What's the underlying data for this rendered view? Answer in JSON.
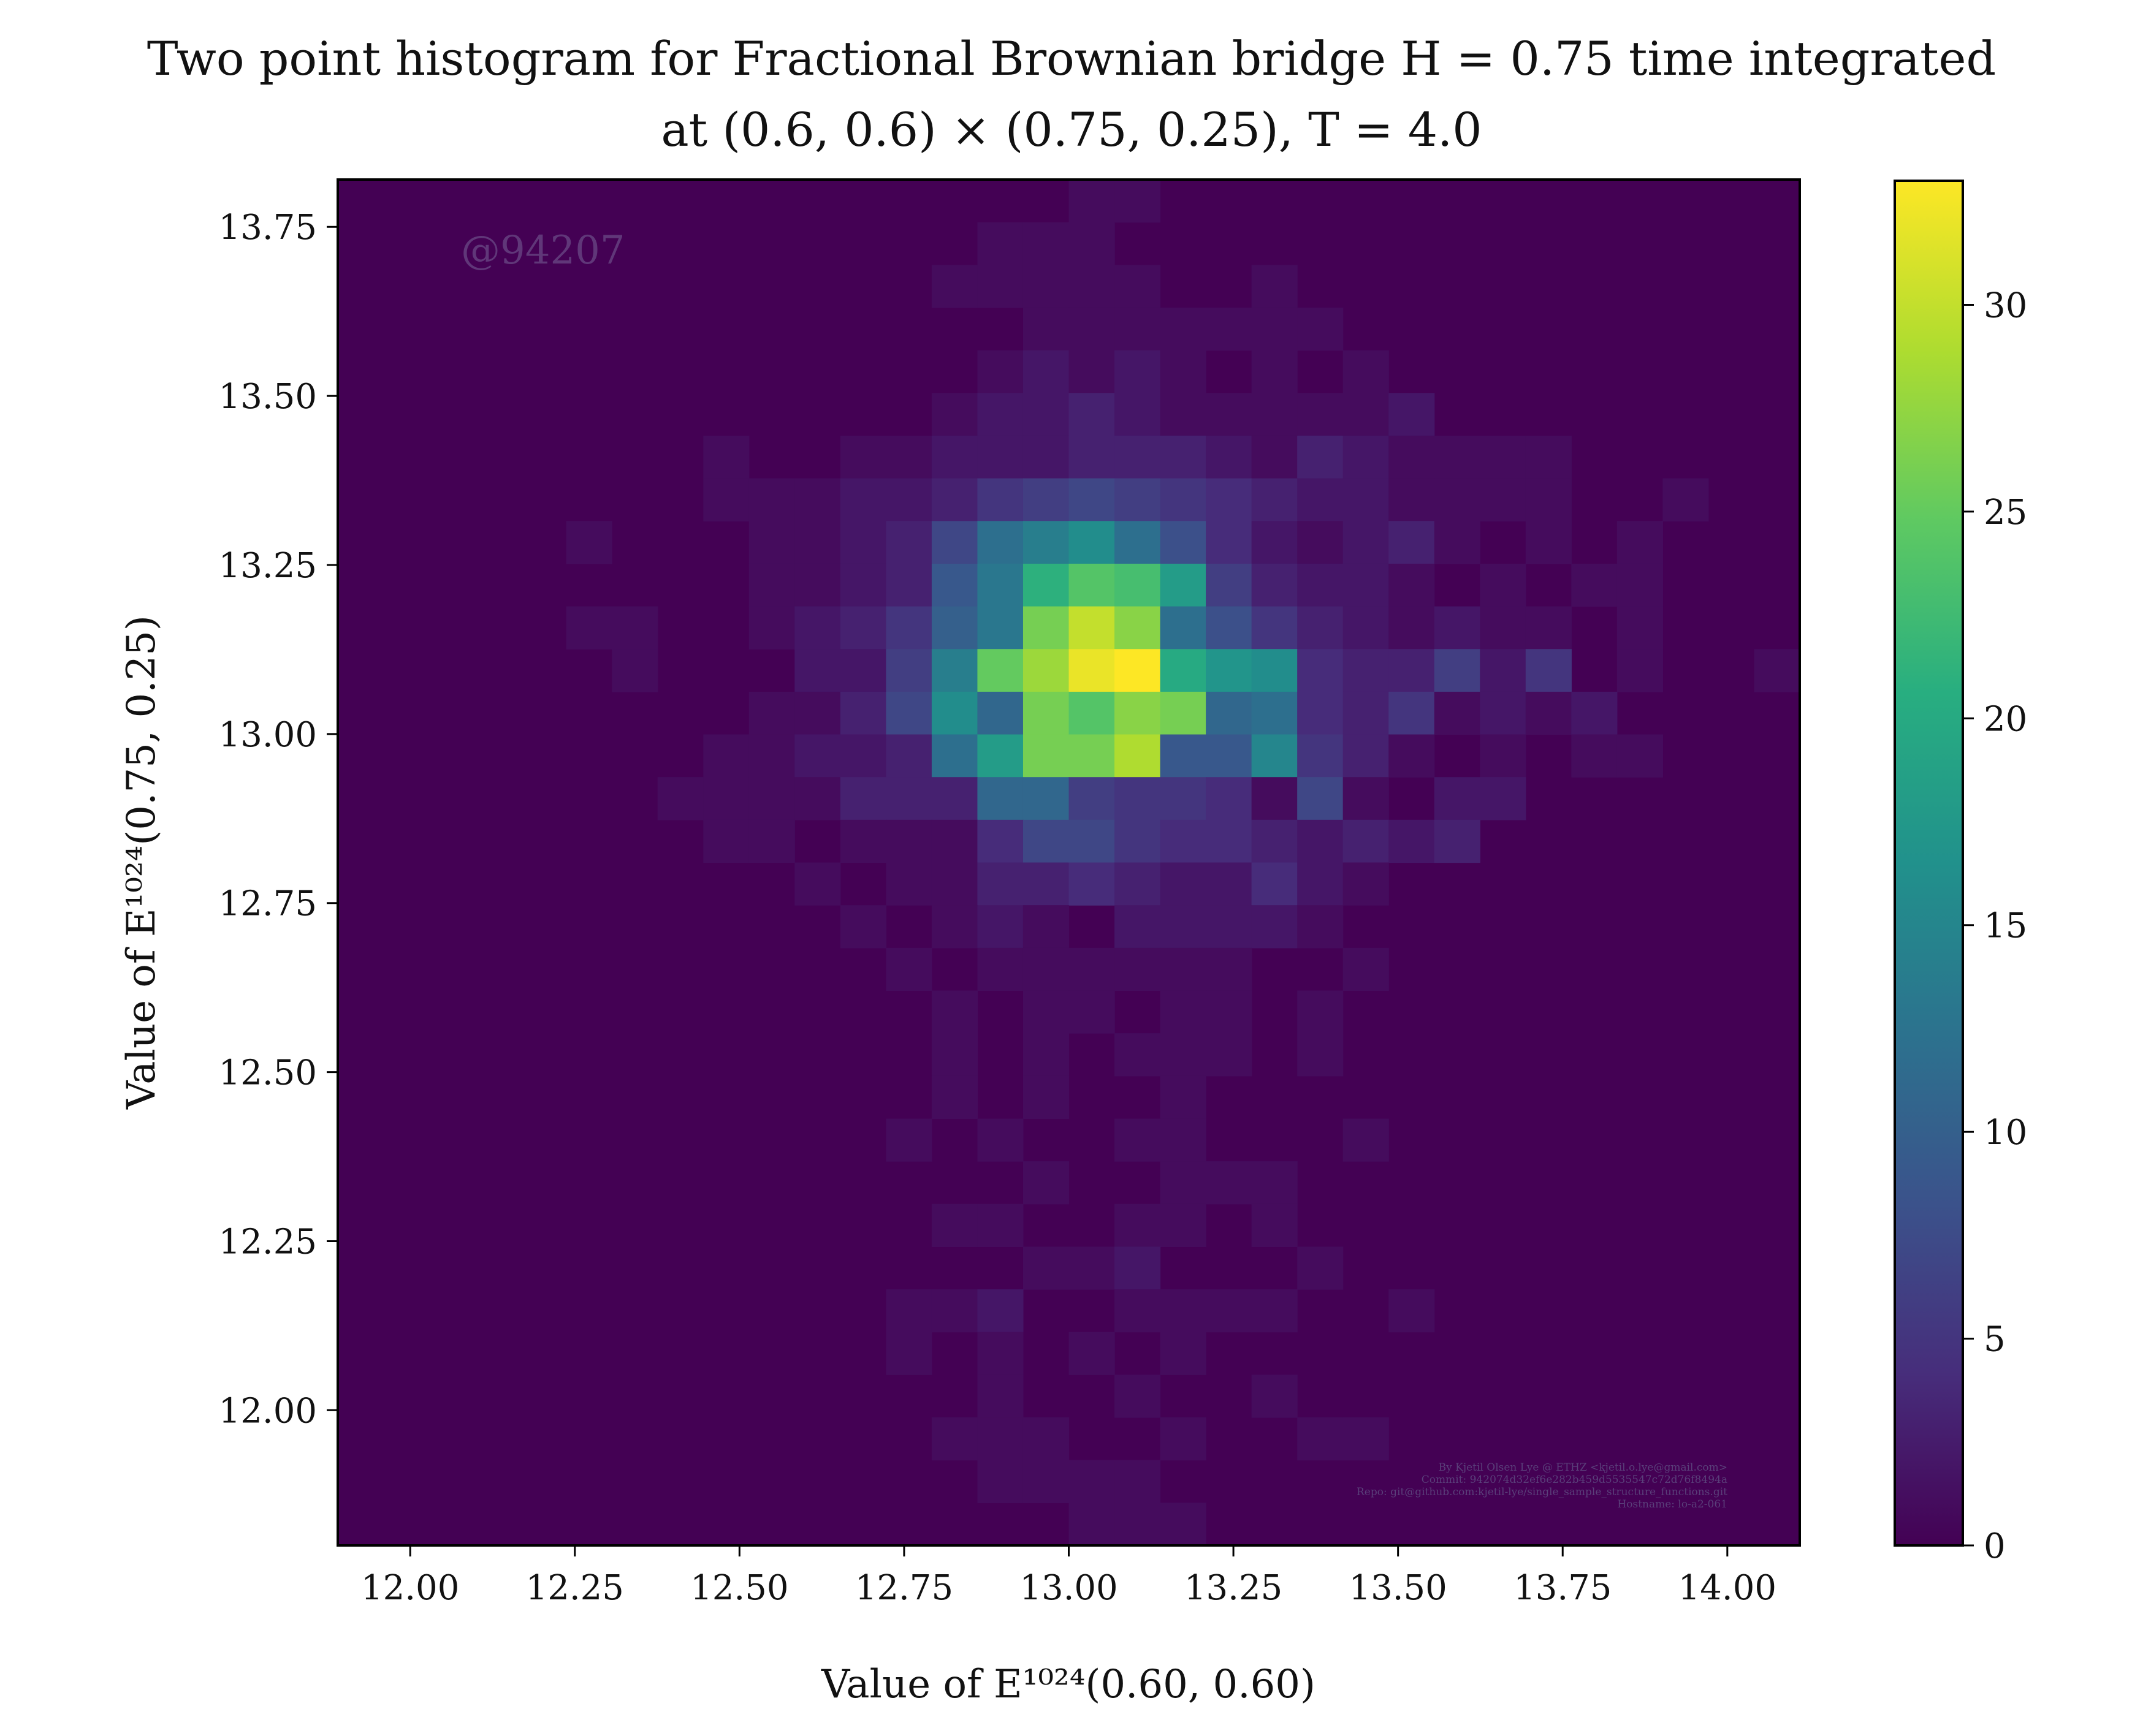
{
  "chart_data": {
    "type": "heatmap",
    "title_line1": "Two point histogram for Fractional Brownian bridge H = 0.75 time integrated",
    "title_line2": "at (0.6, 0.6) × (0.75, 0.25), T = 4.0",
    "xlabel": "Value of E¹⁰²⁴(0.60, 0.60)",
    "ylabel": "Value of E¹⁰²⁴(0.75, 0.25)",
    "xlim": [
      11.89,
      14.11
    ],
    "ylim": [
      11.8,
      13.82
    ],
    "x_ticks": [
      12.0,
      12.25,
      12.5,
      12.75,
      13.0,
      13.25,
      13.5,
      13.75,
      14.0
    ],
    "x_tick_labels": [
      "12.00",
      "12.25",
      "12.50",
      "12.75",
      "13.00",
      "13.25",
      "13.50",
      "13.75",
      "14.00"
    ],
    "y_ticks": [
      12.0,
      12.25,
      12.5,
      12.75,
      13.0,
      13.25,
      13.5,
      13.75
    ],
    "y_tick_labels": [
      "12.00",
      "12.25",
      "12.50",
      "12.75",
      "13.00",
      "13.25",
      "13.50",
      "13.75"
    ],
    "bins_x": 32,
    "bins_y": 32,
    "colorbar": {
      "min": 0,
      "max": 33,
      "ticks": [
        0,
        5,
        10,
        15,
        20,
        25,
        30
      ],
      "tick_labels": [
        "0",
        "5",
        "10",
        "15",
        "20",
        "25",
        "30"
      ],
      "colormap": "viridis"
    },
    "watermark": "@94207",
    "credits": [
      "By Kjetil Olsen Lye @ ETHZ <kjetil.o.lye@gmail.com>",
      "Commit: 942074d32ef6e282b459d5535547c72d76f8494a",
      "Repo: git@github.com:kjetil-lye/single_sample_structure_functions.git",
      "Hostname: lo-a2-061"
    ],
    "counts": [
      [
        31,
        16,
        1
      ],
      [
        31,
        17,
        1
      ],
      [
        30,
        14,
        1
      ],
      [
        30,
        15,
        1
      ],
      [
        30,
        16,
        1
      ],
      [
        29,
        13,
        1
      ],
      [
        29,
        14,
        1
      ],
      [
        29,
        15,
        1
      ],
      [
        29,
        16,
        1
      ],
      [
        29,
        17,
        1
      ],
      [
        29,
        20,
        1
      ],
      [
        28,
        15,
        1
      ],
      [
        28,
        16,
        1
      ],
      [
        28,
        17,
        1
      ],
      [
        28,
        18,
        1
      ],
      [
        28,
        19,
        1
      ],
      [
        28,
        20,
        1
      ],
      [
        28,
        21,
        1
      ],
      [
        27,
        14,
        1
      ],
      [
        27,
        15,
        2
      ],
      [
        27,
        16,
        1
      ],
      [
        27,
        17,
        2
      ],
      [
        27,
        18,
        1
      ],
      [
        27,
        20,
        1
      ],
      [
        27,
        22,
        1
      ],
      [
        26,
        13,
        1
      ],
      [
        26,
        14,
        2
      ],
      [
        26,
        15,
        2
      ],
      [
        26,
        16,
        3
      ],
      [
        26,
        17,
        2
      ],
      [
        26,
        18,
        1
      ],
      [
        26,
        19,
        1
      ],
      [
        26,
        20,
        1
      ],
      [
        26,
        21,
        1
      ],
      [
        26,
        22,
        1
      ],
      [
        26,
        23,
        2
      ],
      [
        25,
        8,
        1
      ],
      [
        25,
        11,
        1
      ],
      [
        25,
        12,
        1
      ],
      [
        25,
        13,
        2
      ],
      [
        25,
        14,
        2
      ],
      [
        25,
        15,
        2
      ],
      [
        25,
        16,
        3
      ],
      [
        25,
        17,
        3
      ],
      [
        25,
        18,
        3
      ],
      [
        25,
        19,
        2
      ],
      [
        25,
        20,
        1
      ],
      [
        25,
        21,
        3
      ],
      [
        25,
        22,
        2
      ],
      [
        25,
        23,
        1
      ],
      [
        25,
        24,
        1
      ],
      [
        25,
        25,
        1
      ],
      [
        25,
        26,
        1
      ],
      [
        24,
        8,
        1
      ],
      [
        24,
        9,
        1
      ],
      [
        24,
        10,
        1
      ],
      [
        24,
        11,
        2
      ],
      [
        24,
        12,
        2
      ],
      [
        24,
        13,
        3
      ],
      [
        24,
        14,
        5
      ],
      [
        24,
        15,
        6
      ],
      [
        24,
        16,
        7
      ],
      [
        24,
        17,
        6
      ],
      [
        24,
        18,
        5
      ],
      [
        24,
        19,
        4
      ],
      [
        24,
        20,
        3
      ],
      [
        24,
        21,
        2
      ],
      [
        24,
        22,
        2
      ],
      [
        24,
        23,
        1
      ],
      [
        24,
        24,
        1
      ],
      [
        24,
        25,
        1
      ],
      [
        24,
        26,
        1
      ],
      [
        24,
        29,
        1
      ],
      [
        23,
        5,
        1
      ],
      [
        23,
        9,
        1
      ],
      [
        23,
        10,
        1
      ],
      [
        23,
        11,
        2
      ],
      [
        23,
        12,
        3
      ],
      [
        23,
        13,
        7
      ],
      [
        23,
        14,
        12
      ],
      [
        23,
        15,
        14
      ],
      [
        23,
        16,
        16
      ],
      [
        23,
        17,
        12
      ],
      [
        23,
        18,
        8
      ],
      [
        23,
        19,
        4
      ],
      [
        23,
        20,
        2
      ],
      [
        23,
        21,
        1
      ],
      [
        23,
        22,
        2
      ],
      [
        23,
        23,
        3
      ],
      [
        23,
        24,
        1
      ],
      [
        23,
        26,
        1
      ],
      [
        23,
        28,
        1
      ],
      [
        22,
        9,
        1
      ],
      [
        22,
        10,
        1
      ],
      [
        22,
        11,
        2
      ],
      [
        22,
        12,
        3
      ],
      [
        22,
        13,
        9
      ],
      [
        22,
        14,
        13
      ],
      [
        22,
        15,
        21
      ],
      [
        22,
        16,
        24
      ],
      [
        22,
        17,
        23
      ],
      [
        22,
        18,
        18
      ],
      [
        22,
        19,
        6
      ],
      [
        22,
        20,
        3
      ],
      [
        22,
        21,
        2
      ],
      [
        22,
        22,
        2
      ],
      [
        22,
        23,
        1
      ],
      [
        22,
        25,
        1
      ],
      [
        22,
        27,
        1
      ],
      [
        22,
        28,
        1
      ],
      [
        21,
        5,
        1
      ],
      [
        21,
        6,
        1
      ],
      [
        21,
        9,
        1
      ],
      [
        21,
        10,
        2
      ],
      [
        21,
        11,
        3
      ],
      [
        21,
        12,
        5
      ],
      [
        21,
        13,
        10
      ],
      [
        21,
        14,
        13
      ],
      [
        21,
        15,
        26
      ],
      [
        21,
        16,
        30
      ],
      [
        21,
        17,
        27
      ],
      [
        21,
        18,
        12
      ],
      [
        21,
        19,
        8
      ],
      [
        21,
        20,
        5
      ],
      [
        21,
        21,
        3
      ],
      [
        21,
        22,
        2
      ],
      [
        21,
        23,
        1
      ],
      [
        21,
        24,
        2
      ],
      [
        21,
        25,
        1
      ],
      [
        21,
        26,
        1
      ],
      [
        21,
        28,
        1
      ],
      [
        20,
        6,
        1
      ],
      [
        20,
        10,
        2
      ],
      [
        20,
        11,
        2
      ],
      [
        20,
        12,
        6
      ],
      [
        20,
        13,
        14
      ],
      [
        20,
        14,
        25
      ],
      [
        20,
        15,
        28
      ],
      [
        20,
        16,
        32
      ],
      [
        20,
        17,
        33
      ],
      [
        20,
        18,
        20
      ],
      [
        20,
        19,
        17
      ],
      [
        20,
        20,
        16
      ],
      [
        20,
        21,
        4
      ],
      [
        20,
        22,
        3
      ],
      [
        20,
        23,
        3
      ],
      [
        20,
        24,
        6
      ],
      [
        20,
        25,
        2
      ],
      [
        20,
        26,
        5
      ],
      [
        20,
        28,
        1
      ],
      [
        20,
        31,
        1
      ],
      [
        19,
        9,
        1
      ],
      [
        19,
        10,
        1
      ],
      [
        19,
        11,
        3
      ],
      [
        19,
        12,
        7
      ],
      [
        19,
        13,
        16
      ],
      [
        19,
        14,
        11
      ],
      [
        19,
        15,
        26
      ],
      [
        19,
        16,
        24
      ],
      [
        19,
        17,
        27
      ],
      [
        19,
        18,
        26
      ],
      [
        19,
        19,
        11
      ],
      [
        19,
        20,
        12
      ],
      [
        19,
        21,
        4
      ],
      [
        19,
        22,
        3
      ],
      [
        19,
        23,
        5
      ],
      [
        19,
        24,
        1
      ],
      [
        19,
        25,
        2
      ],
      [
        19,
        26,
        1
      ],
      [
        19,
        27,
        2
      ],
      [
        18,
        8,
        1
      ],
      [
        18,
        9,
        1
      ],
      [
        18,
        10,
        2
      ],
      [
        18,
        11,
        2
      ],
      [
        18,
        12,
        3
      ],
      [
        18,
        13,
        12
      ],
      [
        18,
        14,
        18
      ],
      [
        18,
        15,
        26
      ],
      [
        18,
        16,
        26
      ],
      [
        18,
        17,
        29
      ],
      [
        18,
        18,
        9
      ],
      [
        18,
        19,
        9
      ],
      [
        18,
        20,
        15
      ],
      [
        18,
        21,
        5
      ],
      [
        18,
        22,
        3
      ],
      [
        18,
        23,
        1
      ],
      [
        18,
        25,
        1
      ],
      [
        18,
        27,
        1
      ],
      [
        18,
        28,
        1
      ],
      [
        17,
        7,
        1
      ],
      [
        17,
        8,
        1
      ],
      [
        17,
        9,
        1
      ],
      [
        17,
        10,
        1
      ],
      [
        17,
        11,
        3
      ],
      [
        17,
        12,
        3
      ],
      [
        17,
        13,
        3
      ],
      [
        17,
        14,
        11
      ],
      [
        17,
        15,
        11
      ],
      [
        17,
        16,
        6
      ],
      [
        17,
        17,
        5
      ],
      [
        17,
        18,
        5
      ],
      [
        17,
        19,
        4
      ],
      [
        17,
        20,
        1
      ],
      [
        17,
        21,
        7
      ],
      [
        17,
        22,
        1
      ],
      [
        17,
        24,
        2
      ],
      [
        17,
        25,
        2
      ],
      [
        16,
        8,
        1
      ],
      [
        16,
        9,
        1
      ],
      [
        16,
        11,
        1
      ],
      [
        16,
        12,
        1
      ],
      [
        16,
        13,
        1
      ],
      [
        16,
        14,
        4
      ],
      [
        16,
        15,
        7
      ],
      [
        16,
        16,
        7
      ],
      [
        16,
        17,
        5
      ],
      [
        16,
        18,
        4
      ],
      [
        16,
        19,
        4
      ],
      [
        16,
        20,
        3
      ],
      [
        16,
        21,
        2
      ],
      [
        16,
        22,
        3
      ],
      [
        16,
        23,
        2
      ],
      [
        16,
        24,
        3
      ],
      [
        15,
        10,
        1
      ],
      [
        15,
        12,
        1
      ],
      [
        15,
        13,
        1
      ],
      [
        15,
        14,
        3
      ],
      [
        15,
        15,
        3
      ],
      [
        15,
        16,
        4
      ],
      [
        15,
        17,
        3
      ],
      [
        15,
        18,
        2
      ],
      [
        15,
        19,
        2
      ],
      [
        15,
        20,
        4
      ],
      [
        15,
        21,
        2
      ],
      [
        15,
        22,
        1
      ],
      [
        14,
        11,
        1
      ],
      [
        14,
        13,
        1
      ],
      [
        14,
        14,
        2
      ],
      [
        14,
        15,
        1
      ],
      [
        14,
        17,
        2
      ],
      [
        14,
        18,
        2
      ],
      [
        14,
        19,
        2
      ],
      [
        14,
        20,
        2
      ],
      [
        14,
        21,
        1
      ],
      [
        13,
        12,
        1
      ],
      [
        13,
        14,
        1
      ],
      [
        13,
        15,
        1
      ],
      [
        13,
        16,
        1
      ],
      [
        13,
        17,
        1
      ],
      [
        13,
        18,
        1
      ],
      [
        13,
        19,
        1
      ],
      [
        13,
        22,
        1
      ],
      [
        12,
        13,
        1
      ],
      [
        12,
        15,
        1
      ],
      [
        12,
        16,
        1
      ],
      [
        12,
        18,
        1
      ],
      [
        12,
        19,
        1
      ],
      [
        12,
        21,
        1
      ],
      [
        11,
        13,
        1
      ],
      [
        11,
        15,
        1
      ],
      [
        11,
        17,
        1
      ],
      [
        11,
        18,
        1
      ],
      [
        11,
        19,
        1
      ],
      [
        11,
        21,
        1
      ],
      [
        10,
        13,
        1
      ],
      [
        10,
        15,
        1
      ],
      [
        10,
        18,
        1
      ],
      [
        9,
        12,
        1
      ],
      [
        9,
        14,
        1
      ],
      [
        9,
        17,
        1
      ],
      [
        9,
        18,
        1
      ],
      [
        9,
        22,
        1
      ],
      [
        8,
        15,
        1
      ],
      [
        8,
        18,
        1
      ],
      [
        8,
        19,
        1
      ],
      [
        8,
        20,
        1
      ],
      [
        7,
        13,
        1
      ],
      [
        7,
        14,
        1
      ],
      [
        7,
        17,
        1
      ],
      [
        7,
        18,
        1
      ],
      [
        7,
        20,
        1
      ],
      [
        6,
        15,
        1
      ],
      [
        6,
        16,
        1
      ],
      [
        6,
        17,
        2
      ],
      [
        6,
        21,
        1
      ],
      [
        5,
        12,
        1
      ],
      [
        5,
        13,
        1
      ],
      [
        5,
        14,
        2
      ],
      [
        5,
        17,
        1
      ],
      [
        5,
        18,
        1
      ],
      [
        5,
        19,
        1
      ],
      [
        5,
        20,
        1
      ],
      [
        5,
        23,
        1
      ],
      [
        4,
        12,
        1
      ],
      [
        4,
        14,
        1
      ],
      [
        4,
        16,
        1
      ],
      [
        4,
        18,
        1
      ],
      [
        3,
        14,
        1
      ],
      [
        3,
        17,
        1
      ],
      [
        3,
        20,
        1
      ],
      [
        2,
        13,
        1
      ],
      [
        2,
        14,
        1
      ],
      [
        2,
        15,
        1
      ],
      [
        2,
        18,
        1
      ],
      [
        2,
        21,
        1
      ],
      [
        2,
        22,
        1
      ],
      [
        1,
        14,
        1
      ],
      [
        1,
        15,
        1
      ],
      [
        1,
        16,
        1
      ],
      [
        1,
        17,
        1
      ],
      [
        0,
        16,
        1
      ],
      [
        0,
        17,
        1
      ],
      [
        0,
        18,
        1
      ]
    ]
  }
}
